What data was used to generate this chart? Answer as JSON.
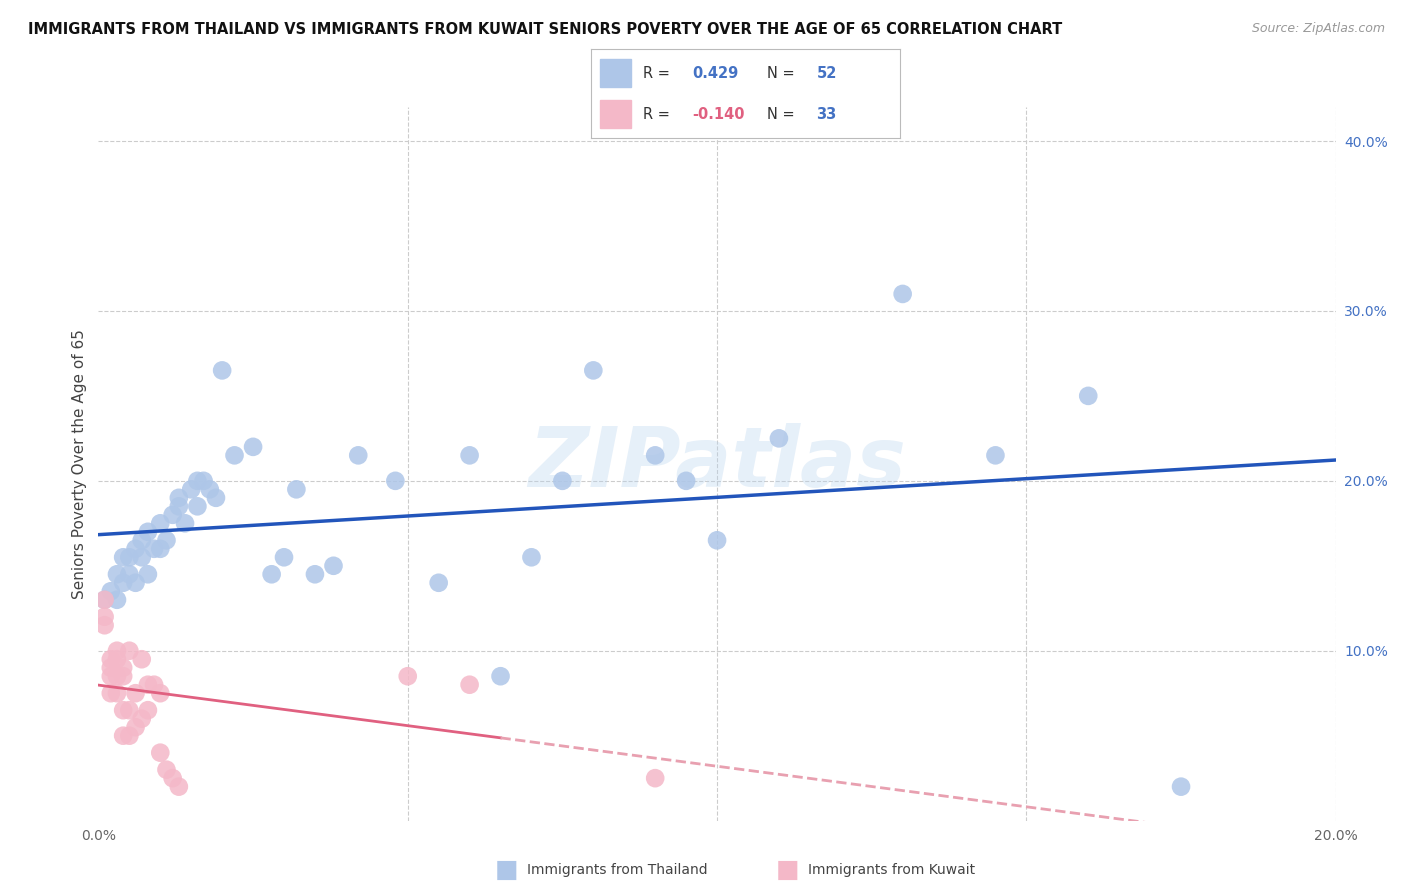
{
  "title": "IMMIGRANTS FROM THAILAND VS IMMIGRANTS FROM KUWAIT SENIORS POVERTY OVER THE AGE OF 65 CORRELATION CHART",
  "source": "Source: ZipAtlas.com",
  "ylabel": "Seniors Poverty Over the Age of 65",
  "xlim": [
    0.0,
    0.2
  ],
  "ylim": [
    0.0,
    0.42
  ],
  "legend_r_thailand": "0.429",
  "legend_n_thailand": "52",
  "legend_r_kuwait": "-0.140",
  "legend_n_kuwait": "33",
  "thailand_color": "#aec6e8",
  "kuwait_color": "#f4b8c8",
  "thailand_line_color": "#2255bb",
  "kuwait_line_color": "#e06080",
  "kuwait_line_dashed_color": "#e8a0b0",
  "watermark": "ZIPatlas",
  "background_color": "#ffffff",
  "grid_color": "#cccccc",
  "thailand_x": [
    0.001,
    0.002,
    0.003,
    0.003,
    0.004,
    0.004,
    0.005,
    0.005,
    0.006,
    0.006,
    0.007,
    0.007,
    0.008,
    0.008,
    0.009,
    0.01,
    0.01,
    0.011,
    0.012,
    0.013,
    0.013,
    0.014,
    0.015,
    0.016,
    0.016,
    0.017,
    0.018,
    0.019,
    0.02,
    0.022,
    0.025,
    0.028,
    0.03,
    0.032,
    0.035,
    0.038,
    0.042,
    0.048,
    0.055,
    0.06,
    0.065,
    0.07,
    0.075,
    0.08,
    0.09,
    0.095,
    0.1,
    0.11,
    0.13,
    0.145,
    0.16,
    0.175
  ],
  "thailand_y": [
    0.13,
    0.135,
    0.13,
    0.145,
    0.14,
    0.155,
    0.145,
    0.155,
    0.14,
    0.16,
    0.155,
    0.165,
    0.145,
    0.17,
    0.16,
    0.16,
    0.175,
    0.165,
    0.18,
    0.185,
    0.19,
    0.175,
    0.195,
    0.185,
    0.2,
    0.2,
    0.195,
    0.19,
    0.265,
    0.215,
    0.22,
    0.145,
    0.155,
    0.195,
    0.145,
    0.15,
    0.215,
    0.2,
    0.14,
    0.215,
    0.085,
    0.155,
    0.2,
    0.265,
    0.215,
    0.2,
    0.165,
    0.225,
    0.31,
    0.215,
    0.25,
    0.02
  ],
  "kuwait_x": [
    0.001,
    0.001,
    0.001,
    0.002,
    0.002,
    0.002,
    0.002,
    0.003,
    0.003,
    0.003,
    0.003,
    0.004,
    0.004,
    0.004,
    0.004,
    0.005,
    0.005,
    0.005,
    0.006,
    0.006,
    0.007,
    0.007,
    0.008,
    0.008,
    0.009,
    0.01,
    0.01,
    0.011,
    0.012,
    0.013,
    0.05,
    0.06,
    0.09
  ],
  "kuwait_y": [
    0.13,
    0.12,
    0.115,
    0.095,
    0.09,
    0.085,
    0.075,
    0.1,
    0.095,
    0.085,
    0.075,
    0.09,
    0.085,
    0.065,
    0.05,
    0.1,
    0.065,
    0.05,
    0.075,
    0.055,
    0.095,
    0.06,
    0.08,
    0.065,
    0.08,
    0.075,
    0.04,
    0.03,
    0.025,
    0.02,
    0.085,
    0.08,
    0.025
  ]
}
